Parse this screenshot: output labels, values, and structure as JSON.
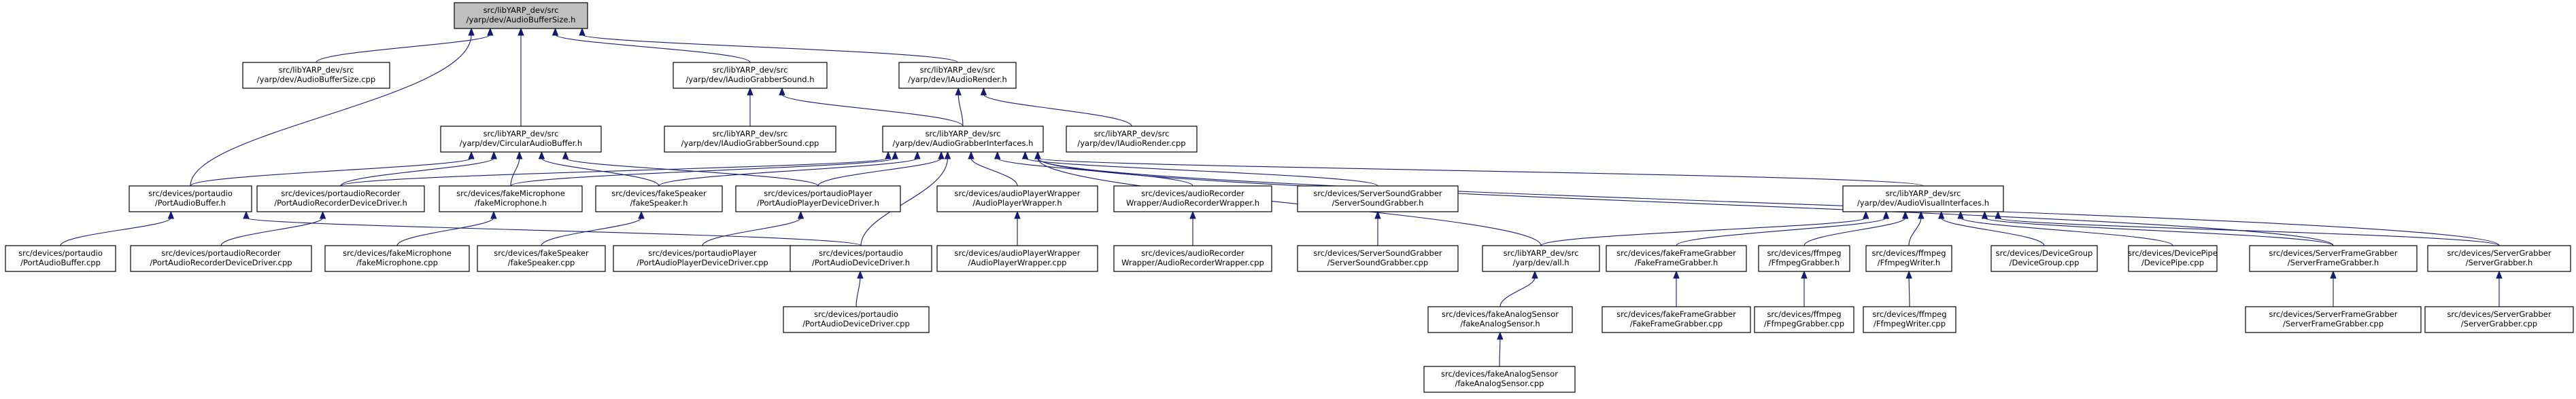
{
  "diagram": {
    "nodes": [
      {
        "id": "root",
        "lines": [
          "src/libYARP_dev/src",
          "/yarp/dev/AudioBufferSize.h"
        ],
        "highlight": true
      },
      {
        "id": "abs_cpp",
        "lines": [
          "src/libYARP_dev/src",
          "/yarp/dev/AudioBufferSize.cpp"
        ]
      },
      {
        "id": "iags_h",
        "lines": [
          "src/libYARP_dev/src",
          "/yarp/dev/IAudioGrabberSound.h"
        ]
      },
      {
        "id": "iar_h",
        "lines": [
          "src/libYARP_dev/src",
          "/yarp/dev/IAudioRender.h"
        ]
      },
      {
        "id": "cab_h",
        "lines": [
          "src/libYARP_dev/src",
          "/yarp/dev/CircularAudioBuffer.h"
        ]
      },
      {
        "id": "iags_cpp",
        "lines": [
          "src/libYARP_dev/src",
          "/yarp/dev/IAudioGrabberSound.cpp"
        ]
      },
      {
        "id": "agi_h",
        "lines": [
          "src/libYARP_dev/src",
          "/yarp/dev/AudioGrabberInterfaces.h"
        ]
      },
      {
        "id": "iar_cpp",
        "lines": [
          "src/libYARP_dev/src",
          "/yarp/dev/IAudioRender.cpp"
        ]
      },
      {
        "id": "pab_h",
        "lines": [
          "src/devices/portaudio",
          "/PortAudioBuffer.h"
        ]
      },
      {
        "id": "parec_h",
        "lines": [
          "src/devices/portaudioRecorder",
          "/PortAudioRecorderDeviceDriver.h"
        ]
      },
      {
        "id": "fmic_h",
        "lines": [
          "src/devices/fakeMicrophone",
          "/fakeMicrophone.h"
        ]
      },
      {
        "id": "fspk_h",
        "lines": [
          "src/devices/fakeSpeaker",
          "/fakeSpeaker.h"
        ]
      },
      {
        "id": "paply_h",
        "lines": [
          "src/devices/portaudioPlayer",
          "/PortAudioPlayerDeviceDriver.h"
        ]
      },
      {
        "id": "apw_h",
        "lines": [
          "src/devices/audioPlayerWrapper",
          "/AudioPlayerWrapper.h"
        ]
      },
      {
        "id": "arw_h",
        "lines": [
          "src/devices/audioRecorder",
          "Wrapper/AudioRecorderWrapper.h"
        ]
      },
      {
        "id": "ssg_h",
        "lines": [
          "src/devices/ServerSoundGrabber",
          "/ServerSoundGrabber.h"
        ]
      },
      {
        "id": "avi_h",
        "lines": [
          "src/libYARP_dev/src",
          "/yarp/dev/AudioVisualInterfaces.h"
        ]
      },
      {
        "id": "pab_cpp",
        "lines": [
          "src/devices/portaudio",
          "/PortAudioBuffer.cpp"
        ]
      },
      {
        "id": "parec_cpp",
        "lines": [
          "src/devices/portaudioRecorder",
          "/PortAudioRecorderDeviceDriver.cpp"
        ]
      },
      {
        "id": "fmic_cpp",
        "lines": [
          "src/devices/fakeMicrophone",
          "/fakeMicrophone.cpp"
        ]
      },
      {
        "id": "fspk_cpp",
        "lines": [
          "src/devices/fakeSpeaker",
          "/fakeSpeaker.cpp"
        ]
      },
      {
        "id": "paply_cpp",
        "lines": [
          "src/devices/portaudioPlayer",
          "/PortAudioPlayerDeviceDriver.cpp"
        ]
      },
      {
        "id": "padd_h",
        "lines": [
          "src/devices/portaudio",
          "/PortAudioDeviceDriver.h"
        ]
      },
      {
        "id": "apw_cpp",
        "lines": [
          "src/devices/audioPlayerWrapper",
          "/AudioPlayerWrapper.cpp"
        ]
      },
      {
        "id": "arw_cpp",
        "lines": [
          "src/devices/audioRecorder",
          "Wrapper/AudioRecorderWrapper.cpp"
        ]
      },
      {
        "id": "ssg_cpp",
        "lines": [
          "src/devices/ServerSoundGrabber",
          "/ServerSoundGrabber.cpp"
        ]
      },
      {
        "id": "all_h",
        "lines": [
          "src/libYARP_dev/src",
          "/yarp/dev/all.h"
        ]
      },
      {
        "id": "ffg_h",
        "lines": [
          "src/devices/fakeFrameGrabber",
          "/FakeFrameGrabber.h"
        ]
      },
      {
        "id": "ffg_grab_h",
        "lines": [
          "src/devices/ffmpeg",
          "/FfmpegGrabber.h"
        ]
      },
      {
        "id": "ffw_h",
        "lines": [
          "src/devices/ffmpeg",
          "/FfmpegWriter.h"
        ]
      },
      {
        "id": "dg_cpp",
        "lines": [
          "src/devices/DeviceGroup",
          "/DeviceGroup.cpp"
        ]
      },
      {
        "id": "dp_cpp",
        "lines": [
          "src/devices/DevicePipe",
          "/DevicePipe.cpp"
        ]
      },
      {
        "id": "sfg_h",
        "lines": [
          "src/devices/ServerFrameGrabber",
          "/ServerFrameGrabber.h"
        ]
      },
      {
        "id": "sg_h",
        "lines": [
          "src/devices/ServerGrabber",
          "/ServerGrabber.h"
        ]
      },
      {
        "id": "padd_cpp",
        "lines": [
          "src/devices/portaudio",
          "/PortAudioDeviceDriver.cpp"
        ]
      },
      {
        "id": "fas_h",
        "lines": [
          "src/devices/fakeAnalogSensor",
          "/fakeAnalogSensor.h"
        ]
      },
      {
        "id": "ffg_cpp",
        "lines": [
          "src/devices/fakeFrameGrabber",
          "/FakeFrameGrabber.cpp"
        ]
      },
      {
        "id": "ffg_grab_cpp",
        "lines": [
          "src/devices/ffmpeg",
          "/FfmpegGrabber.cpp"
        ]
      },
      {
        "id": "ffw_cpp",
        "lines": [
          "src/devices/ffmpeg",
          "/FfmpegWriter.cpp"
        ]
      },
      {
        "id": "sfg_cpp",
        "lines": [
          "src/devices/ServerFrameGrabber",
          "/ServerFrameGrabber.cpp"
        ]
      },
      {
        "id": "sg_cpp",
        "lines": [
          "src/devices/ServerGrabber",
          "/ServerGrabber.cpp"
        ]
      },
      {
        "id": "fas_cpp",
        "lines": [
          "src/devices/fakeAnalogSensor",
          "/fakeAnalogSensor.cpp"
        ]
      }
    ],
    "edges": [
      [
        "abs_cpp",
        "root"
      ],
      [
        "iags_h",
        "root"
      ],
      [
        "iar_h",
        "root"
      ],
      [
        "cab_h",
        "root"
      ],
      [
        "pab_h",
        "root"
      ],
      [
        "iags_cpp",
        "iags_h"
      ],
      [
        "agi_h",
        "iags_h"
      ],
      [
        "agi_h",
        "iar_h"
      ],
      [
        "iar_cpp",
        "iar_h"
      ],
      [
        "pab_h",
        "cab_h"
      ],
      [
        "parec_h",
        "cab_h"
      ],
      [
        "fmic_h",
        "cab_h"
      ],
      [
        "fspk_h",
        "cab_h"
      ],
      [
        "paply_h",
        "cab_h"
      ],
      [
        "parec_h",
        "agi_h"
      ],
      [
        "fmic_h",
        "agi_h"
      ],
      [
        "fspk_h",
        "agi_h"
      ],
      [
        "paply_h",
        "agi_h"
      ],
      [
        "padd_h",
        "agi_h"
      ],
      [
        "apw_h",
        "agi_h"
      ],
      [
        "arw_h",
        "agi_h"
      ],
      [
        "ssg_h",
        "agi_h"
      ],
      [
        "avi_h",
        "agi_h"
      ],
      [
        "all_h",
        "agi_h"
      ],
      [
        "sfg_h",
        "agi_h"
      ],
      [
        "sg_h",
        "agi_h"
      ],
      [
        "pab_cpp",
        "pab_h"
      ],
      [
        "padd_h",
        "pab_h"
      ],
      [
        "parec_cpp",
        "parec_h"
      ],
      [
        "fmic_cpp",
        "fmic_h"
      ],
      [
        "fspk_cpp",
        "fspk_h"
      ],
      [
        "paply_cpp",
        "paply_h"
      ],
      [
        "apw_cpp",
        "apw_h"
      ],
      [
        "arw_cpp",
        "arw_h"
      ],
      [
        "ssg_cpp",
        "ssg_h"
      ],
      [
        "all_h",
        "avi_h"
      ],
      [
        "ffg_h",
        "avi_h"
      ],
      [
        "ffg_grab_h",
        "avi_h"
      ],
      [
        "ffw_h",
        "avi_h"
      ],
      [
        "dg_cpp",
        "avi_h"
      ],
      [
        "dp_cpp",
        "avi_h"
      ],
      [
        "sfg_h",
        "avi_h"
      ],
      [
        "sg_h",
        "avi_h"
      ],
      [
        "padd_cpp",
        "padd_h"
      ],
      [
        "fas_h",
        "all_h"
      ],
      [
        "ffg_cpp",
        "ffg_h"
      ],
      [
        "ffg_grab_cpp",
        "ffg_grab_h"
      ],
      [
        "ffw_cpp",
        "ffw_h"
      ],
      [
        "sfg_cpp",
        "sfg_h"
      ],
      [
        "sg_cpp",
        "sg_h"
      ],
      [
        "fas_cpp",
        "fas_h"
      ]
    ]
  }
}
